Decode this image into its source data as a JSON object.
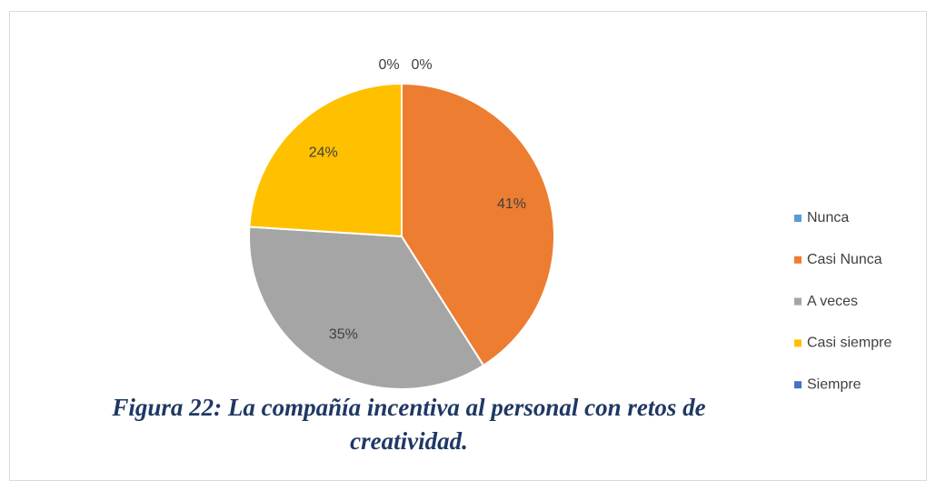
{
  "chart_data": {
    "type": "pie",
    "caption": "Figura 22: La compañía incentiva al personal con retos de creatividad.",
    "categories": [
      "Nunca",
      "Casi Nunca",
      "A veces",
      "Casi siempre",
      "Siempre"
    ],
    "values": [
      0,
      41,
      35,
      24,
      0
    ],
    "value_labels": [
      "0%",
      "41%",
      "35%",
      "24%",
      "0%"
    ],
    "colors": [
      "#5b9bd5",
      "#ed7d31",
      "#a5a5a5",
      "#ffc000",
      "#4472c4"
    ],
    "legend": "right"
  }
}
